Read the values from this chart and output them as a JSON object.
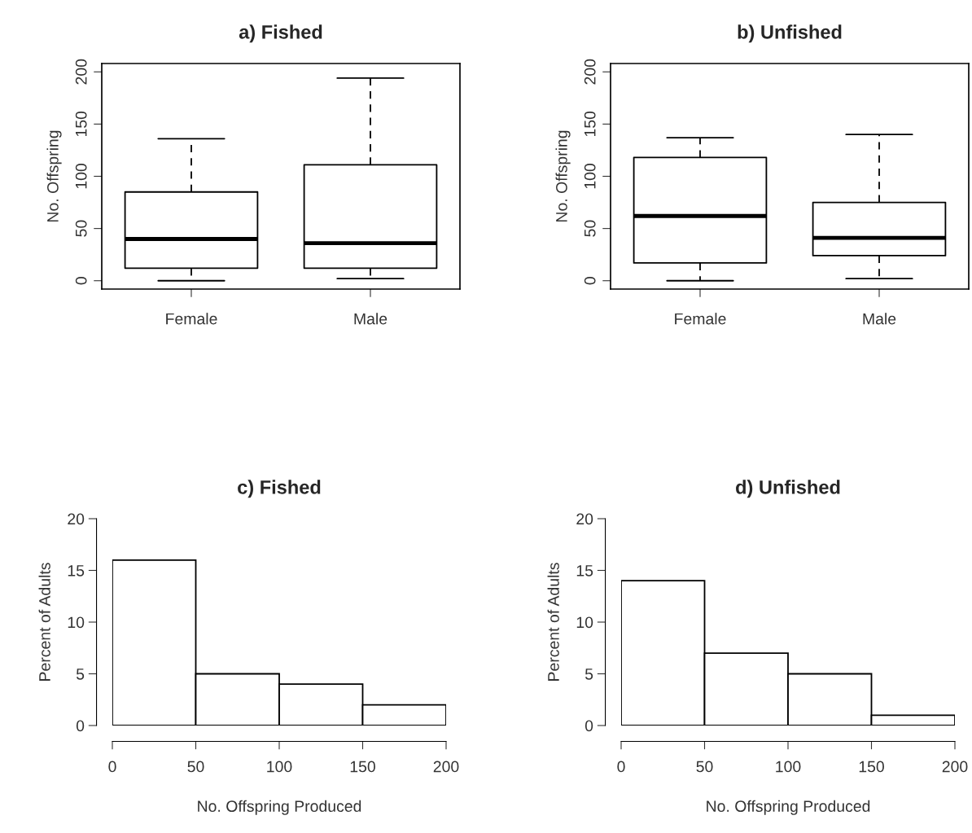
{
  "chart_data": [
    {
      "type": "box",
      "title": "a) Fished",
      "ylabel": "No. Offspring",
      "categories": [
        "Female",
        "Male"
      ],
      "ylim": [
        -8,
        208
      ],
      "yticks": [
        0,
        50,
        100,
        150,
        200
      ],
      "grid": false,
      "legend": false,
      "boxes": [
        {
          "low": 0,
          "q1": 12,
          "median": 40,
          "q3": 85,
          "high": 136
        },
        {
          "low": 2,
          "q1": 12,
          "median": 36,
          "q3": 111,
          "high": 194
        }
      ]
    },
    {
      "type": "box",
      "title": "b) Unfished",
      "ylabel": "No. Offspring",
      "categories": [
        "Female",
        "Male"
      ],
      "ylim": [
        -8,
        208
      ],
      "yticks": [
        0,
        50,
        100,
        150,
        200
      ],
      "grid": false,
      "legend": false,
      "boxes": [
        {
          "low": 0,
          "q1": 17,
          "median": 62,
          "q3": 118,
          "high": 137
        },
        {
          "low": 2,
          "q1": 24,
          "median": 41,
          "q3": 75,
          "high": 140
        }
      ]
    },
    {
      "type": "histogram",
      "title": "c) Fished",
      "xlabel": "No. Offspring Produced",
      "ylabel": "Percent of Adults",
      "bins": [
        0,
        50,
        100,
        150,
        200
      ],
      "values": [
        16,
        5,
        4,
        2
      ],
      "xlim": [
        0,
        200
      ],
      "ylim": [
        0,
        20
      ],
      "xticks": [
        0,
        50,
        100,
        150,
        200
      ],
      "yticks": [
        0,
        5,
        10,
        15,
        20
      ],
      "grid": false,
      "legend": false
    },
    {
      "type": "histogram",
      "title": "d) Unfished",
      "xlabel": "No. Offspring Produced",
      "ylabel": "Percent of Adults",
      "bins": [
        0,
        50,
        100,
        150,
        200
      ],
      "values": [
        14,
        7,
        5,
        1
      ],
      "xlim": [
        0,
        200
      ],
      "ylim": [
        0,
        20
      ],
      "xticks": [
        0,
        50,
        100,
        150,
        200
      ],
      "yticks": [
        0,
        5,
        10,
        15,
        20
      ],
      "grid": false,
      "legend": false
    }
  ]
}
